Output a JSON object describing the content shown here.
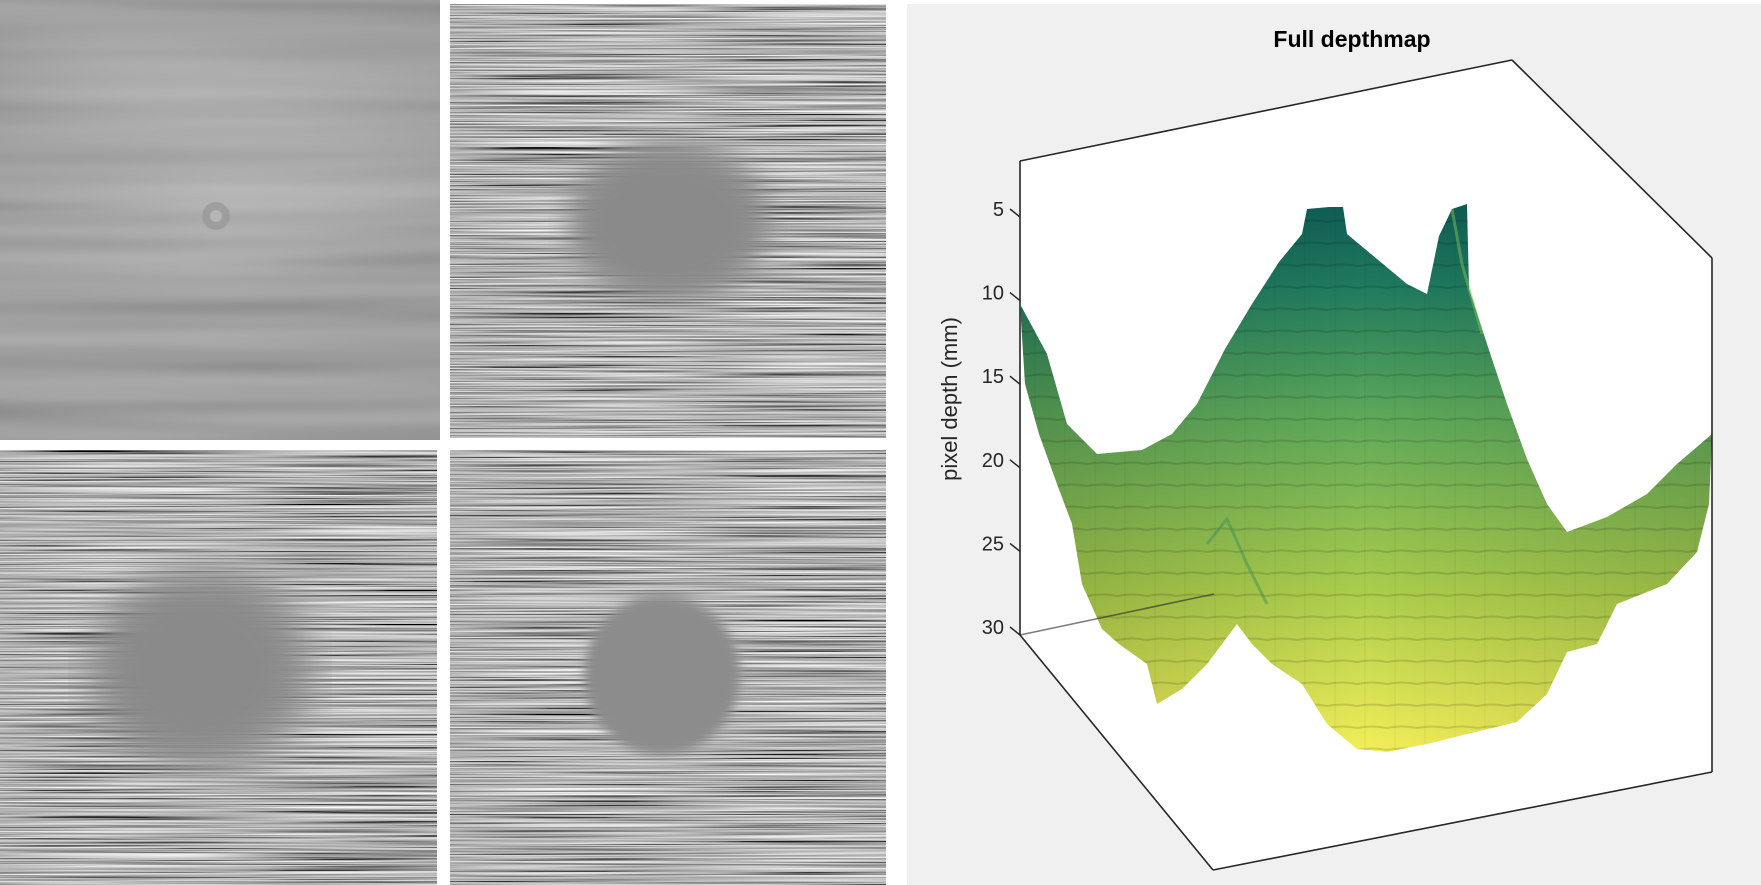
{
  "images": [
    {
      "name": "focus-image-1",
      "blurred_disk": "small"
    },
    {
      "name": "focus-image-2",
      "blurred_disk": "large"
    },
    {
      "name": "focus-image-3",
      "blurred_disk": "large"
    },
    {
      "name": "focus-image-4",
      "blurred_disk": "sharp-edged"
    }
  ],
  "chart_data": {
    "type": "surface",
    "title": "Full depthmap",
    "zlabel": "pixel depth (mm)",
    "zlim": [
      0,
      30
    ],
    "z_reversed": true,
    "z_ticks": [
      5,
      10,
      15,
      20,
      25,
      30
    ],
    "z_tick_labels": [
      "5",
      "10",
      "15",
      "20",
      "25",
      "30"
    ],
    "grid": false,
    "colormap": [
      "#f3ee58",
      "#a9cc4c",
      "#5ba75a",
      "#1f7a5e",
      "#0f5d55"
    ],
    "surface_shape": "central peak at depth ~3 mm, four corner ridges rising to ~10 mm, valleys down to ~29 mm"
  }
}
